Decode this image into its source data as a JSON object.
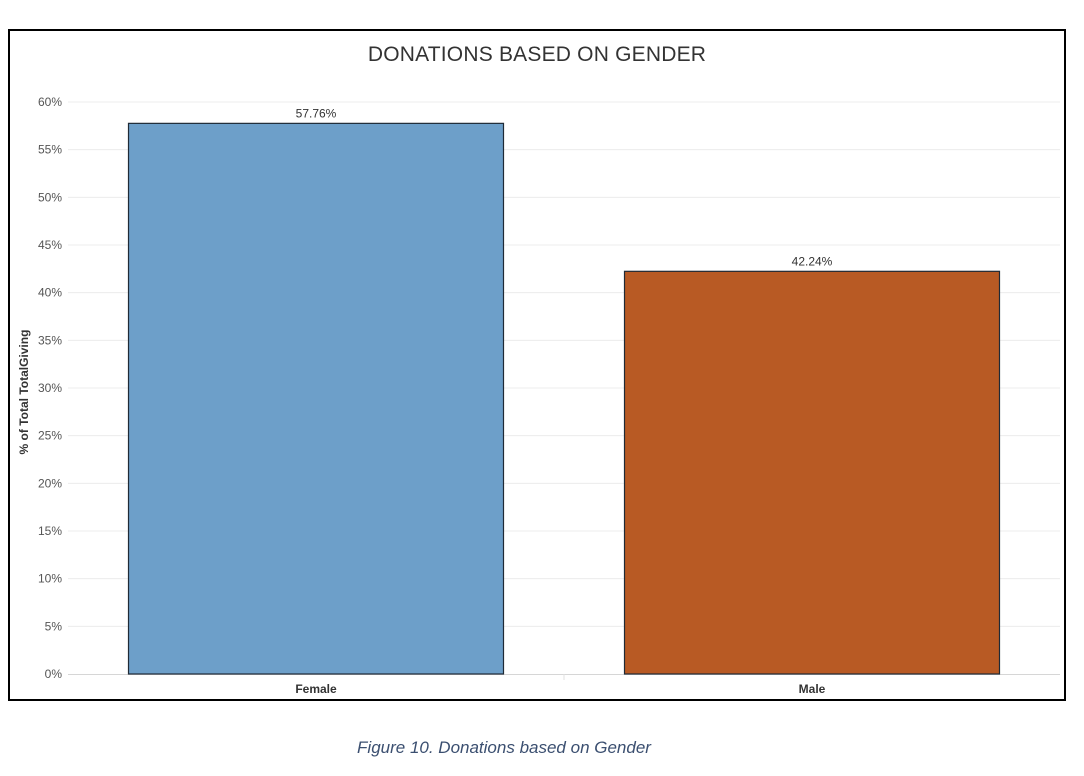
{
  "chart_data": {
    "type": "bar",
    "title": "DONATIONS BASED ON GENDER",
    "xlabel": "",
    "ylabel": "% of Total TotalGiving",
    "categories": [
      "Female",
      "Male"
    ],
    "values": [
      57.76,
      42.24
    ],
    "data_labels": [
      "57.76%",
      "42.24%"
    ],
    "bar_colors": [
      "#6d9fc9",
      "#b85a24"
    ],
    "ylim": [
      0,
      60
    ],
    "yticks": [
      0,
      5,
      10,
      15,
      20,
      25,
      30,
      35,
      40,
      45,
      50,
      55,
      60
    ],
    "ytick_labels": [
      "0%",
      "5%",
      "10%",
      "15%",
      "20%",
      "25%",
      "30%",
      "35%",
      "40%",
      "45%",
      "50%",
      "55%",
      "60%"
    ],
    "grid": true,
    "legend": "none"
  },
  "caption": "Figure 10. Donations based on Gender"
}
